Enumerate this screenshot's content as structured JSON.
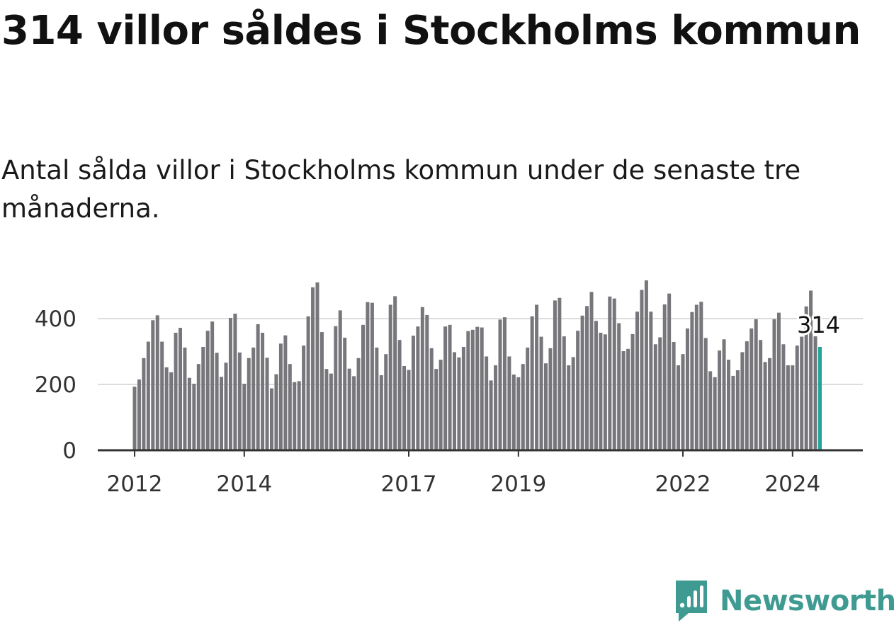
{
  "header": {
    "title": "314 villor såldes i Stockholms kommun",
    "subtitle": "Antal sålda villor i Stockholms kommun under de senaste tre månaderna."
  },
  "brand": {
    "name": "Newsworthy",
    "icon": "newsworthy-logo-icon",
    "color": "#3f9b92"
  },
  "chart_data": {
    "type": "bar",
    "x_start": "2012-01",
    "x_end": "2024-07",
    "x_ticks": [
      "2012",
      "2014",
      "2017",
      "2019",
      "2022",
      "2024"
    ],
    "y_ticks": [
      0,
      200,
      400
    ],
    "ylim": [
      0,
      520
    ],
    "grid": true,
    "colors": {
      "bar": "#77767b",
      "highlight": "#21a69a",
      "grid": "#dddddd",
      "axis": "#333333"
    },
    "highlight": {
      "x": "2024-07",
      "value": 314,
      "label": "314"
    },
    "values": [
      193,
      215,
      280,
      330,
      395,
      410,
      330,
      252,
      237,
      357,
      372,
      312,
      220,
      202,
      262,
      314,
      363,
      391,
      296,
      223,
      266,
      402,
      415,
      297,
      202,
      280,
      312,
      383,
      357,
      281,
      188,
      231,
      324,
      349,
      262,
      207,
      210,
      318,
      407,
      495,
      510,
      359,
      247,
      233,
      377,
      425,
      342,
      248,
      225,
      280,
      381,
      450,
      448,
      312,
      228,
      292,
      442,
      468,
      335,
      256,
      244,
      348,
      376,
      435,
      411,
      310,
      247,
      275,
      376,
      381,
      298,
      282,
      314,
      362,
      366,
      375,
      373,
      285,
      212,
      258,
      397,
      404,
      285,
      230,
      222,
      262,
      312,
      407,
      442,
      345,
      264,
      310,
      455,
      463,
      346,
      258,
      283,
      363,
      409,
      438,
      481,
      393,
      357,
      352,
      467,
      461,
      386,
      301,
      308,
      353,
      421,
      487,
      516,
      421,
      322,
      343,
      443,
      476,
      329,
      258,
      292,
      370,
      420,
      442,
      451,
      341,
      240,
      222,
      303,
      337,
      275,
      226,
      243,
      298,
      331,
      370,
      398,
      335,
      268,
      280,
      398,
      418,
      322,
      258,
      258,
      318,
      345,
      437,
      485,
      346,
      314
    ]
  }
}
